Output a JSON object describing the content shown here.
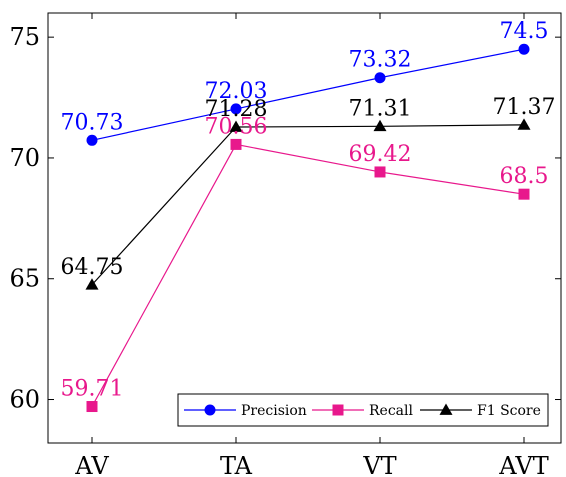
{
  "chart_data": {
    "type": "line",
    "title": "",
    "xlabel": "",
    "ylabel": "",
    "categories": [
      "AV",
      "TA",
      "VT",
      "AVT"
    ],
    "ylim": [
      58.2,
      76
    ],
    "yticks": [
      60,
      65,
      70,
      75
    ],
    "grid": false,
    "legend_position": "bottom-right",
    "series": [
      {
        "name": "Precision",
        "values": [
          70.73,
          72.03,
          73.32,
          74.5
        ],
        "labels": [
          "70.73",
          "72.03",
          "73.32",
          "74.5"
        ],
        "color": "#0000ff",
        "marker": "circle"
      },
      {
        "name": "Recall",
        "values": [
          59.71,
          70.56,
          69.42,
          68.5
        ],
        "labels": [
          "59.71",
          "70.56",
          "69.42",
          "68.5"
        ],
        "color": "#e8188c",
        "marker": "square"
      },
      {
        "name": "F1 Score",
        "values": [
          64.75,
          71.28,
          71.31,
          71.37
        ],
        "labels": [
          "64.75",
          "71.28",
          "71.31",
          "71.37"
        ],
        "color": "#000000",
        "marker": "triangle"
      }
    ]
  }
}
